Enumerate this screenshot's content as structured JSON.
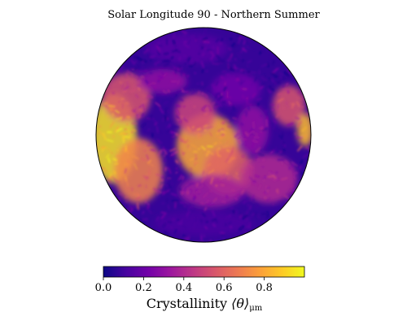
{
  "chart_data": {
    "type": "heatmap",
    "title": "Solar Longitude 90 - Northern Summer",
    "colorbar": {
      "label_prefix": "Crystallinity ",
      "label_symbol": "⟨θ⟩",
      "label_subscript": "μm",
      "range": [
        0.0,
        1.0
      ],
      "ticks": [
        0.0,
        0.2,
        0.4,
        0.6,
        0.8
      ],
      "tick_labels": [
        "0.0",
        "0.2",
        "0.4",
        "0.6",
        "0.8"
      ],
      "colormap": "plasma",
      "colormap_stops": [
        "#0d0887",
        "#46039f",
        "#7201a8",
        "#9c179e",
        "#bd3786",
        "#d8576b",
        "#ed7953",
        "#fb9f3a",
        "#fdca26",
        "#f0f921"
      ],
      "orientation": "horizontal",
      "placement": "bottom"
    },
    "map": {
      "projection": "orthographic",
      "hemisphere_view": "full disk",
      "dominant_level": 0.08,
      "bright_regions_level": 0.9
    }
  }
}
